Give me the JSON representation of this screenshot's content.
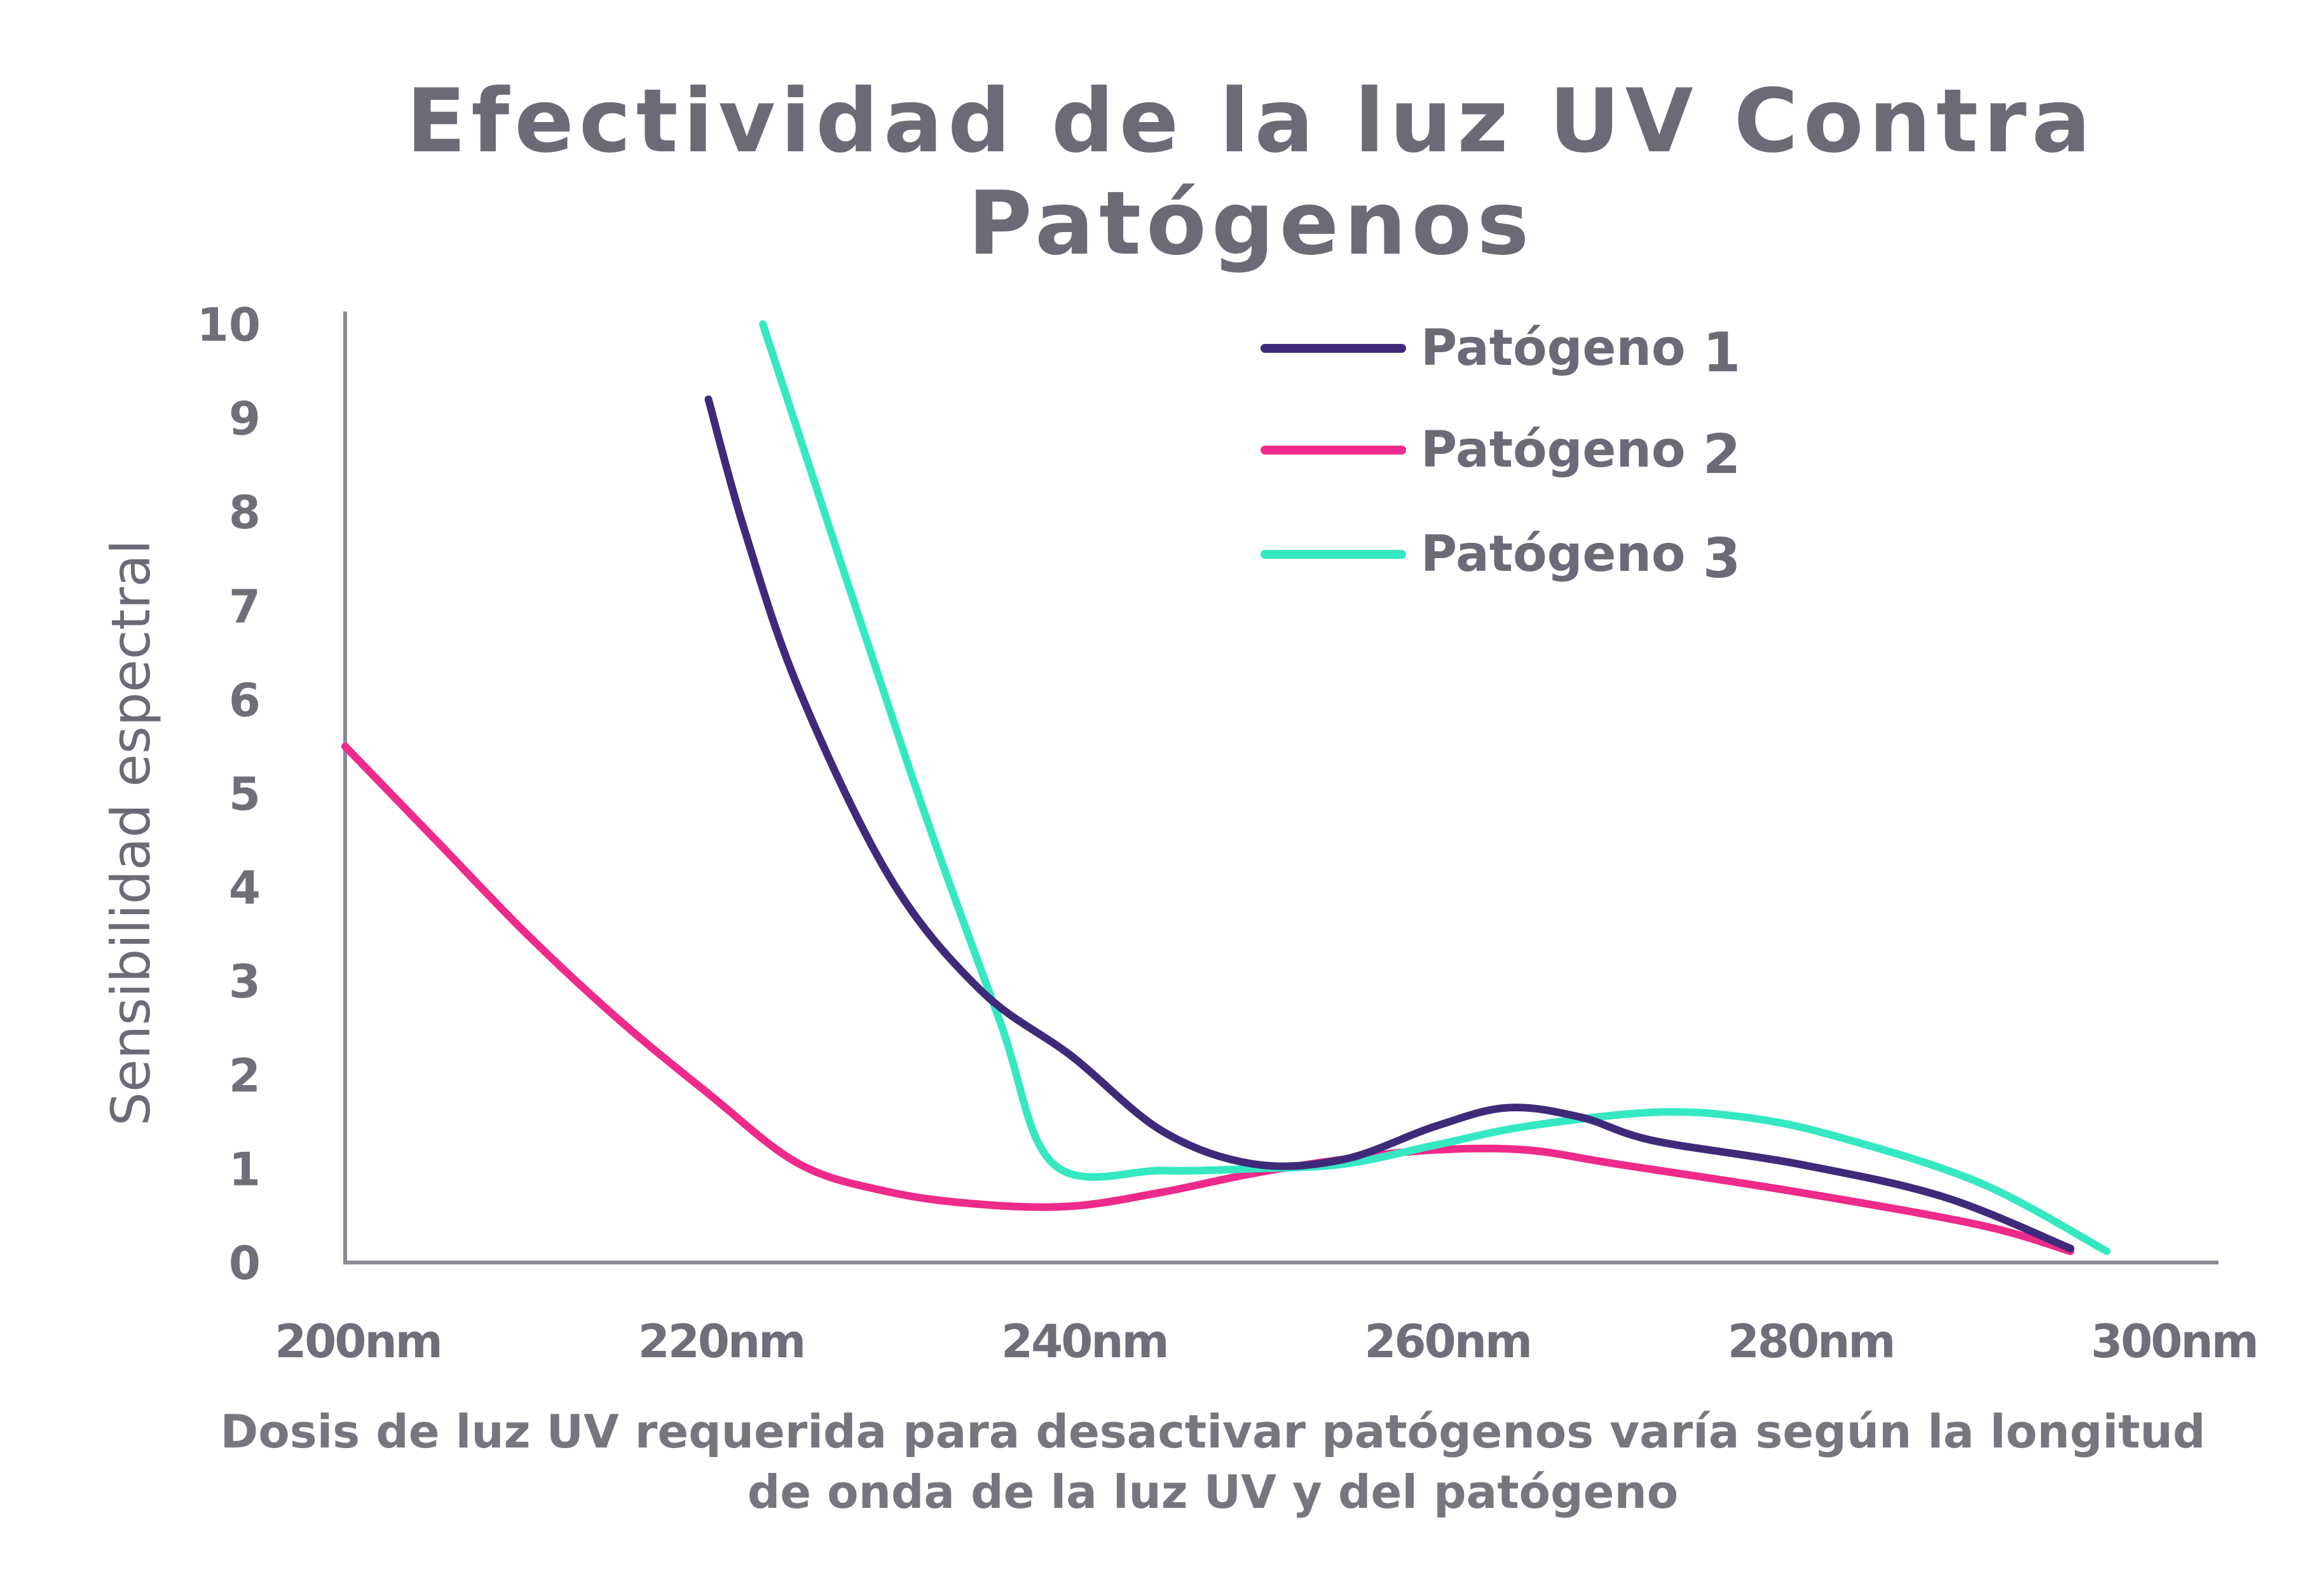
{
  "chart_data": {
    "type": "line",
    "title": "Efectividad de la luz UV Contra Patógenos",
    "ylabel": "Sensibilidad espectral",
    "caption_lines": [
      "Dosis de luz UV requerida para desactivar patógenos varía según la longitud",
      "de onda de la luz UV y del patógeno"
    ],
    "x_ticks": [
      "200nm",
      "220nm",
      "240nm",
      "260nm",
      "280nm",
      "300nm"
    ],
    "x_tick_values": [
      200,
      220,
      240,
      260,
      280,
      300
    ],
    "y_ticks": [
      "0",
      "1",
      "2",
      "3",
      "4",
      "5",
      "6",
      "7",
      "8",
      "9",
      "10"
    ],
    "xlim": [
      200,
      300
    ],
    "ylim": [
      0,
      10
    ],
    "grid": false,
    "legend_position": "top-right",
    "series": [
      {
        "name": "Patógeno 1",
        "color": "#3f2a7a",
        "points": [
          [
            220,
            9.2
          ],
          [
            222,
            7.8
          ],
          [
            225,
            6.1
          ],
          [
            230,
            4.1
          ],
          [
            235,
            2.9
          ],
          [
            240,
            2.2
          ],
          [
            245,
            1.4
          ],
          [
            250,
            1.05
          ],
          [
            255,
            1.1
          ],
          [
            260,
            1.45
          ],
          [
            264,
            1.65
          ],
          [
            268,
            1.55
          ],
          [
            272,
            1.3
          ],
          [
            280,
            1.05
          ],
          [
            288,
            0.7
          ],
          [
            295,
            0.15
          ]
        ]
      },
      {
        "name": "Patógeno 2",
        "color": "#ee2a8a",
        "points": [
          [
            200,
            5.5
          ],
          [
            205,
            4.5
          ],
          [
            210,
            3.5
          ],
          [
            215,
            2.6
          ],
          [
            220,
            1.8
          ],
          [
            225,
            1.05
          ],
          [
            230,
            0.75
          ],
          [
            235,
            0.62
          ],
          [
            240,
            0.6
          ],
          [
            245,
            0.75
          ],
          [
            250,
            0.95
          ],
          [
            255,
            1.1
          ],
          [
            260,
            1.2
          ],
          [
            265,
            1.2
          ],
          [
            270,
            1.05
          ],
          [
            280,
            0.75
          ],
          [
            290,
            0.4
          ],
          [
            295,
            0.12
          ]
        ]
      },
      {
        "name": "Patógeno 3",
        "color": "#35e8c2",
        "points": [
          [
            223,
            10.0
          ],
          [
            231,
            5.3
          ],
          [
            236,
            2.6
          ],
          [
            239,
            1.05
          ],
          [
            245,
            0.98
          ],
          [
            250,
            1.0
          ],
          [
            255,
            1.05
          ],
          [
            260,
            1.25
          ],
          [
            265,
            1.45
          ],
          [
            272,
            1.6
          ],
          [
            277,
            1.55
          ],
          [
            282,
            1.35
          ],
          [
            290,
            0.85
          ],
          [
            297,
            0.12
          ]
        ]
      }
    ]
  },
  "legend": [
    {
      "label": "Patógeno",
      "number": "1"
    },
    {
      "label": "Patógeno",
      "number": "2"
    },
    {
      "label": "Patógeno",
      "number": "3"
    }
  ]
}
